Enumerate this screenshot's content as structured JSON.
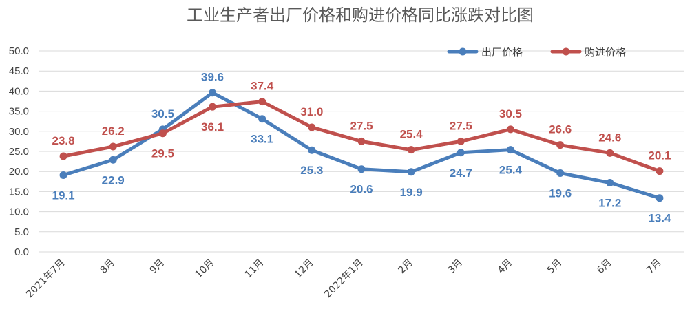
{
  "chart_data": {
    "type": "line",
    "title": "工业生产者出厂价格和购进价格同比涨跌对比图",
    "categories": [
      "2021年7月",
      "8月",
      "9月",
      "10月",
      "11月",
      "12月",
      "2022年1月",
      "2月",
      "3月",
      "4月",
      "5月",
      "6月",
      "7月"
    ],
    "series": [
      {
        "name": "出厂价格",
        "color": "#4a7ebb",
        "values": [
          19.1,
          22.9,
          30.5,
          39.6,
          33.1,
          25.3,
          20.6,
          19.9,
          24.7,
          25.4,
          19.6,
          17.2,
          13.4
        ]
      },
      {
        "name": "购进价格",
        "color": "#c0504d",
        "values": [
          23.8,
          26.2,
          29.5,
          36.1,
          37.4,
          31.0,
          27.5,
          25.4,
          27.5,
          30.5,
          26.6,
          24.6,
          20.1
        ]
      }
    ],
    "yticks": [
      "0.0",
      "5.0",
      "10.0",
      "15.0",
      "20.0",
      "25.0",
      "30.0",
      "35.0",
      "40.0",
      "45.0",
      "50.0"
    ],
    "ylim": [
      0,
      50
    ],
    "xlabel": "",
    "ylabel": "",
    "grid": true,
    "legend": "top-right"
  }
}
